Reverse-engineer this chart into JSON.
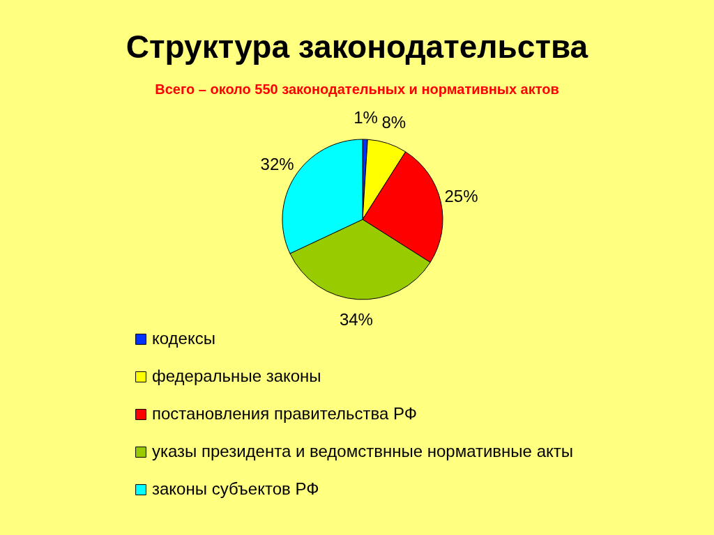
{
  "chart_data": {
    "type": "pie",
    "title": "Структура законодательства",
    "subtitle": "Всего – около 550 законодательных и нормативных актов",
    "categories": [
      "кодексы",
      "федеральные законы",
      "постановления правительства РФ",
      "указы президента и ведомствнные нормативные акты",
      "законы субъектов РФ"
    ],
    "values": [
      1,
      8,
      25,
      34,
      32
    ],
    "colors": [
      "#0033ff",
      "#ffff00",
      "#ff0000",
      "#99cc00",
      "#00ffff"
    ],
    "value_labels": [
      "1%",
      "8%",
      "25%",
      "34%",
      "32%"
    ],
    "legend": "bottom"
  }
}
